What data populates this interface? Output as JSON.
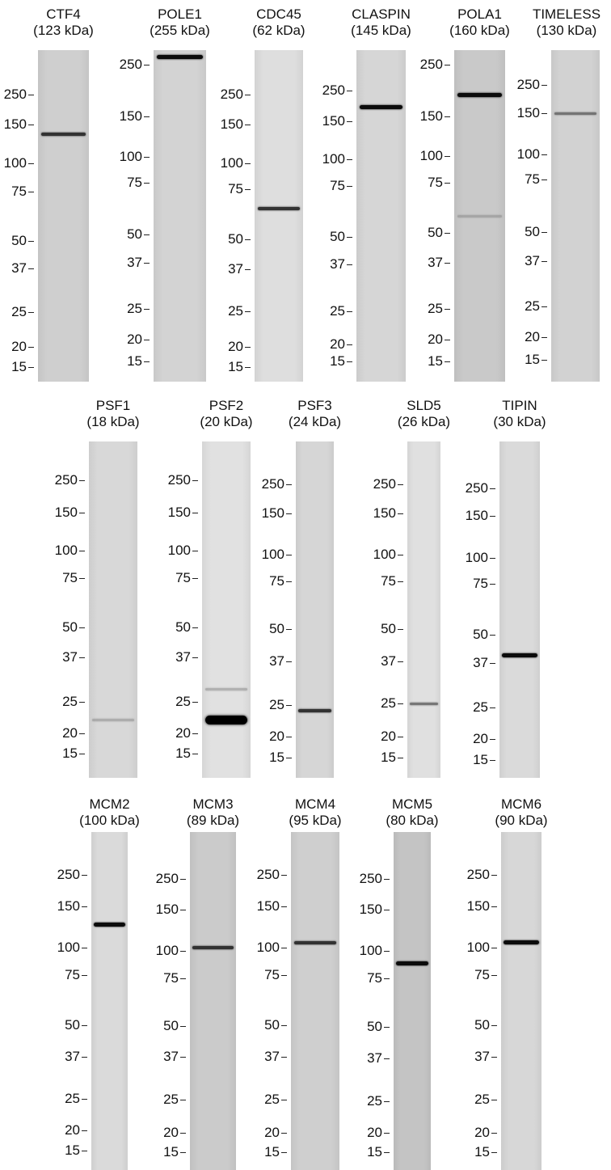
{
  "rows": [
    {
      "panels": [
        {
          "protein": "CTF4",
          "size": "(123 kDa)",
          "lane_color": "#cfcfcf",
          "markers": [
            "250",
            "150",
            "100",
            "75",
            "50",
            "37",
            "25",
            "20",
            "15"
          ],
          "bands": [
            {
              "kda": 135,
              "intensity": "medium"
            }
          ]
        },
        {
          "protein": "POLE1",
          "size": "(255 kDa)",
          "lane_color": "#d3d3d3",
          "markers": [
            "250",
            "150",
            "100",
            "75",
            "50",
            "37",
            "25",
            "20",
            "15"
          ],
          "bands": [
            {
              "kda": 270,
              "intensity": "strong"
            }
          ]
        },
        {
          "protein": "CDC45",
          "size": "(62 kDa)",
          "lane_color": "#dedede",
          "markers": [
            "250",
            "150",
            "100",
            "75",
            "50",
            "37",
            "25",
            "20",
            "15"
          ],
          "bands": [
            {
              "kda": 64,
              "intensity": "medium"
            }
          ]
        },
        {
          "protein": "CLASPIN",
          "size": "(145 kDa)",
          "lane_color": "#d6d6d6",
          "markers": [
            "250",
            "150",
            "100",
            "75",
            "50",
            "37",
            "25",
            "20",
            "15"
          ],
          "bands": [
            {
              "kda": 190,
              "intensity": "strong"
            }
          ]
        },
        {
          "protein": "POLA1",
          "size": "(160 kDa)",
          "lane_color": "#c9c9c9",
          "markers": [
            "250",
            "150",
            "100",
            "75",
            "50",
            "37",
            "25",
            "20",
            "15"
          ],
          "bands": [
            {
              "kda": 185,
              "intensity": "strong"
            },
            {
              "kda": 57,
              "intensity": "faint"
            }
          ]
        },
        {
          "protein": "TIMELESS",
          "size": "(130 kDa)",
          "lane_color": "#d2d2d2",
          "markers": [
            "250",
            "150",
            "100",
            "75",
            "50",
            "37",
            "25",
            "20",
            "15"
          ],
          "bands": [
            {
              "kda": 150,
              "intensity": "light"
            }
          ]
        }
      ]
    },
    {
      "panels": [
        {
          "protein": "PSF1",
          "size": "(18 kDa)",
          "lane_color": "#d8d8d8",
          "markers": [
            "250",
            "150",
            "100",
            "75",
            "50",
            "37",
            "25",
            "20",
            "15"
          ],
          "bands": [
            {
              "kda": 22,
              "intensity": "faint"
            }
          ]
        },
        {
          "protein": "PSF2",
          "size": "(20 kDa)",
          "lane_color": "#e1e1e1",
          "markers": [
            "250",
            "150",
            "100",
            "75",
            "50",
            "37",
            "25",
            "20",
            "15"
          ],
          "bands": [
            {
              "kda": 28,
              "intensity": "faint"
            },
            {
              "kda": 22,
              "intensity": "heavy"
            }
          ]
        },
        {
          "protein": "PSF3",
          "size": "(24 kDa)",
          "lane_color": "#d6d6d6",
          "markers": [
            "250",
            "150",
            "100",
            "75",
            "50",
            "37",
            "25",
            "20",
            "15"
          ],
          "bands": [
            {
              "kda": 24,
              "intensity": "medium"
            }
          ]
        },
        {
          "protein": "SLD5",
          "size": "(26 kDa)",
          "lane_color": "#e0e0e0",
          "markers": [
            "250",
            "150",
            "100",
            "75",
            "50",
            "37",
            "25",
            "20",
            "15"
          ],
          "bands": [
            {
              "kda": 25,
              "intensity": "light"
            }
          ]
        },
        {
          "protein": "TIPIN",
          "size": "(30 kDa)",
          "lane_color": "#dadada",
          "markers": [
            "250",
            "150",
            "100",
            "75",
            "50",
            "37",
            "25",
            "20",
            "15"
          ],
          "bands": [
            {
              "kda": 40,
              "intensity": "strong"
            }
          ]
        }
      ]
    },
    {
      "panels": [
        {
          "protein": "MCM2",
          "size": "(100 kDa)",
          "lane_color": "#dadada",
          "markers": [
            "250",
            "150",
            "100",
            "75",
            "50",
            "37",
            "25",
            "20",
            "15"
          ],
          "bands": [
            {
              "kda": 125,
              "intensity": "strong"
            }
          ]
        },
        {
          "protein": "MCM3",
          "size": "(89 kDa)",
          "lane_color": "#cbcbcb",
          "markers": [
            "250",
            "150",
            "100",
            "75",
            "50",
            "37",
            "25",
            "20",
            "15"
          ],
          "bands": [
            {
              "kda": 103,
              "intensity": "medium"
            }
          ]
        },
        {
          "protein": "MCM4",
          "size": "(95 kDa)",
          "lane_color": "#cfcfcf",
          "markers": [
            "250",
            "150",
            "100",
            "75",
            "50",
            "37",
            "25",
            "20",
            "15"
          ],
          "bands": [
            {
              "kda": 105,
              "intensity": "medium"
            }
          ]
        },
        {
          "protein": "MCM5",
          "size": "(80 kDa)",
          "lane_color": "#c4c4c4",
          "markers": [
            "250",
            "150",
            "100",
            "75",
            "50",
            "37",
            "25",
            "20",
            "15"
          ],
          "bands": [
            {
              "kda": 88,
              "intensity": "strong"
            }
          ]
        },
        {
          "protein": "MCM6",
          "size": "(90 kDa)",
          "lane_color": "#d7d7d7",
          "markers": [
            "250",
            "150",
            "100",
            "75",
            "50",
            "37",
            "25",
            "20",
            "15"
          ],
          "bands": [
            {
              "kda": 105,
              "intensity": "strong"
            }
          ]
        }
      ]
    }
  ]
}
